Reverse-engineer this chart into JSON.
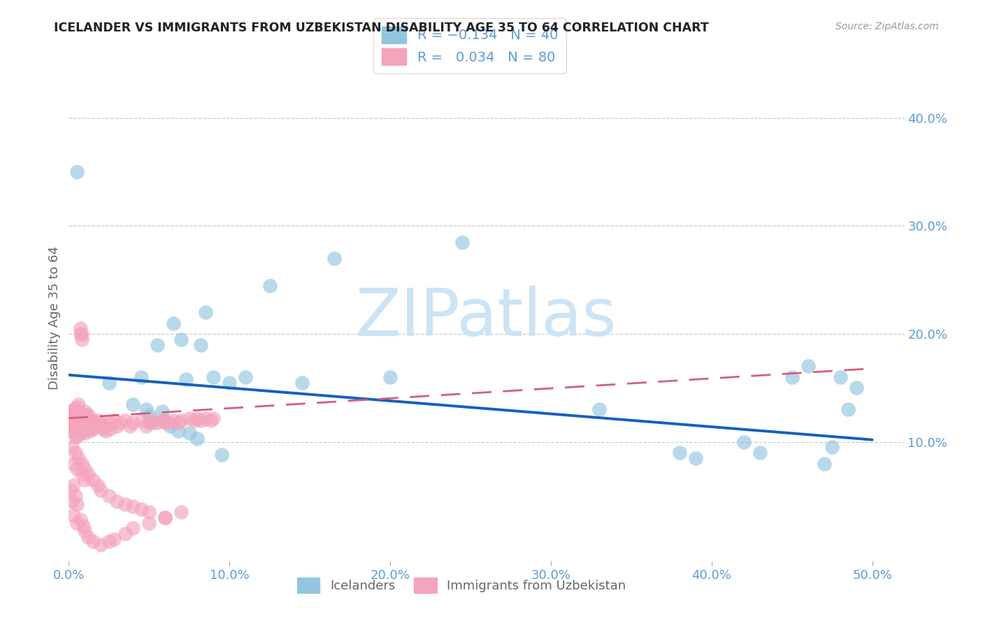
{
  "title": "ICELANDER VS IMMIGRANTS FROM UZBEKISTAN DISABILITY AGE 35 TO 64 CORRELATION CHART",
  "source": "Source: ZipAtlas.com",
  "ylabel": "Disability Age 35 to 64",
  "xlim": [
    0.0,
    0.52
  ],
  "ylim": [
    -0.01,
    0.44
  ],
  "xticks": [
    0.0,
    0.1,
    0.2,
    0.3,
    0.4,
    0.5
  ],
  "xtick_labels": [
    "0.0%",
    "10.0%",
    "20.0%",
    "30.0%",
    "40.0%",
    "50.0%"
  ],
  "yticks_right": [
    0.1,
    0.2,
    0.3,
    0.4
  ],
  "ytick_labels_right": [
    "10.0%",
    "20.0%",
    "30.0%",
    "40.0%"
  ],
  "color_blue": "#92c5de",
  "color_pink": "#f4a4bc",
  "trend_blue_color": "#1560bd",
  "trend_pink_color": "#d4607a",
  "watermark": "ZIPatlas",
  "watermark_color": "#cce4f5",
  "grid_color": "#cccccc",
  "tick_color": "#5b9bd5",
  "ylabel_color": "#666666",
  "title_color": "#222222",
  "source_color": "#999999",
  "legend_edge_color": "#dddddd",
  "legend_text_color": "#5b9bd5",
  "bottom_legend_text_color": "#666666",
  "blue_x": [
    0.005,
    0.025,
    0.04,
    0.045,
    0.048,
    0.05,
    0.052,
    0.055,
    0.058,
    0.06,
    0.063,
    0.065,
    0.068,
    0.07,
    0.073,
    0.075,
    0.08,
    0.082,
    0.085,
    0.09,
    0.095,
    0.1,
    0.11,
    0.125,
    0.145,
    0.165,
    0.2,
    0.245,
    0.33,
    0.38,
    0.39,
    0.42,
    0.43,
    0.45,
    0.46,
    0.47,
    0.475,
    0.48,
    0.485,
    0.49
  ],
  "blue_y": [
    0.35,
    0.155,
    0.135,
    0.16,
    0.13,
    0.125,
    0.118,
    0.19,
    0.128,
    0.12,
    0.115,
    0.21,
    0.11,
    0.195,
    0.158,
    0.108,
    0.103,
    0.19,
    0.22,
    0.16,
    0.088,
    0.155,
    0.16,
    0.245,
    0.155,
    0.27,
    0.16,
    0.285,
    0.13,
    0.09,
    0.085,
    0.1,
    0.09,
    0.16,
    0.17,
    0.08,
    0.095,
    0.16,
    0.13,
    0.15
  ],
  "pink_x": [
    0.001,
    0.001,
    0.002,
    0.002,
    0.002,
    0.003,
    0.003,
    0.003,
    0.003,
    0.004,
    0.004,
    0.004,
    0.004,
    0.005,
    0.005,
    0.005,
    0.005,
    0.005,
    0.006,
    0.006,
    0.006,
    0.006,
    0.007,
    0.007,
    0.007,
    0.007,
    0.008,
    0.008,
    0.008,
    0.008,
    0.009,
    0.009,
    0.009,
    0.01,
    0.01,
    0.01,
    0.011,
    0.011,
    0.012,
    0.012,
    0.013,
    0.013,
    0.014,
    0.014,
    0.015,
    0.015,
    0.016,
    0.017,
    0.018,
    0.019,
    0.02,
    0.021,
    0.022,
    0.023,
    0.025,
    0.026,
    0.028,
    0.03,
    0.032,
    0.035,
    0.038,
    0.04,
    0.045,
    0.048,
    0.05,
    0.052,
    0.055,
    0.058,
    0.06,
    0.062,
    0.065,
    0.068,
    0.07,
    0.075,
    0.078,
    0.08,
    0.082,
    0.085,
    0.088,
    0.09
  ],
  "pink_y": [
    0.125,
    0.115,
    0.128,
    0.118,
    0.11,
    0.13,
    0.125,
    0.118,
    0.112,
    0.128,
    0.12,
    0.113,
    0.105,
    0.132,
    0.125,
    0.118,
    0.112,
    0.105,
    0.135,
    0.128,
    0.12,
    0.112,
    0.2,
    0.205,
    0.115,
    0.108,
    0.2,
    0.195,
    0.118,
    0.11,
    0.125,
    0.118,
    0.112,
    0.128,
    0.118,
    0.108,
    0.125,
    0.115,
    0.125,
    0.115,
    0.118,
    0.11,
    0.12,
    0.112,
    0.12,
    0.112,
    0.115,
    0.118,
    0.12,
    0.115,
    0.118,
    0.112,
    0.115,
    0.11,
    0.118,
    0.112,
    0.12,
    0.115,
    0.118,
    0.12,
    0.115,
    0.118,
    0.12,
    0.115,
    0.118,
    0.12,
    0.118,
    0.12,
    0.118,
    0.118,
    0.12,
    0.118,
    0.12,
    0.122,
    0.12,
    0.122,
    0.12,
    0.122,
    0.12,
    0.122
  ],
  "blue_trend_x": [
    0.0,
    0.5
  ],
  "blue_trend_y": [
    0.162,
    0.102
  ],
  "pink_trend_x": [
    0.0,
    0.5
  ],
  "pink_trend_y": [
    0.122,
    0.168
  ],
  "extra_pink_x": [
    0.001,
    0.002,
    0.003,
    0.004,
    0.005,
    0.003,
    0.005,
    0.007,
    0.009,
    0.01,
    0.012,
    0.015,
    0.02,
    0.025,
    0.028,
    0.035,
    0.04,
    0.05,
    0.06,
    0.07,
    0.003,
    0.005,
    0.008,
    0.01,
    0.002,
    0.004,
    0.006,
    0.008,
    0.01,
    0.012,
    0.015,
    0.018,
    0.02,
    0.025,
    0.03,
    0.035,
    0.04,
    0.045,
    0.05,
    0.06
  ],
  "extra_pink_y": [
    0.055,
    0.045,
    0.06,
    0.05,
    0.042,
    0.032,
    0.025,
    0.028,
    0.022,
    0.018,
    0.012,
    0.008,
    0.005,
    0.008,
    0.01,
    0.015,
    0.02,
    0.025,
    0.03,
    0.035,
    0.08,
    0.075,
    0.07,
    0.065,
    0.095,
    0.09,
    0.085,
    0.08,
    0.075,
    0.07,
    0.065,
    0.06,
    0.055,
    0.05,
    0.045,
    0.042,
    0.04,
    0.038,
    0.035,
    0.03
  ]
}
